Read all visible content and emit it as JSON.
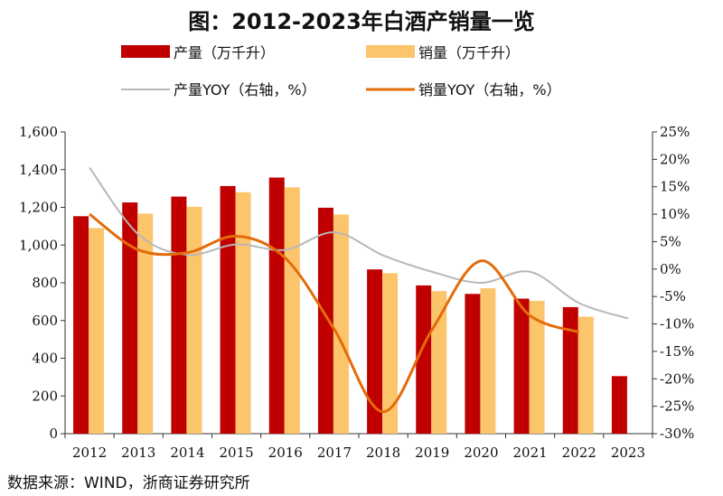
{
  "title": "图：2012-2023年白酒产销量一览",
  "source": "数据来源：WIND，浙商证券研究所",
  "colors": {
    "production": "#c00000",
    "sales": "#fcc46b",
    "production_yoy": "#b8b8b8",
    "sales_yoy": "#e36c0a"
  },
  "chart_data": {
    "type": "bar",
    "categories": [
      "2012",
      "2013",
      "2014",
      "2015",
      "2016",
      "2017",
      "2018",
      "2019",
      "2020",
      "2021",
      "2022",
      "2023"
    ],
    "series": [
      {
        "name": "产量（万千升）",
        "type": "bar",
        "axis": "left",
        "values": [
          1153,
          1226,
          1257,
          1313,
          1358,
          1198,
          871,
          786,
          741,
          716,
          671,
          305
        ]
      },
      {
        "name": "销量（万千升）",
        "type": "bar",
        "axis": "left",
        "values": [
          1090,
          1167,
          1203,
          1280,
          1306,
          1162,
          851,
          756,
          771,
          704,
          620,
          null
        ]
      },
      {
        "name": "产量YOY（右轴，%）",
        "type": "line",
        "axis": "right",
        "values": [
          18.5,
          6.3,
          2.6,
          4.5,
          3.5,
          6.7,
          2.5,
          -0.5,
          -2.5,
          -0.5,
          -6.2,
          -9.0
        ]
      },
      {
        "name": "销量YOY（右轴，%）",
        "type": "line",
        "axis": "right",
        "values": [
          10.0,
          3.5,
          3.0,
          6.0,
          2.0,
          -11.0,
          -26.0,
          -11.0,
          1.5,
          -8.5,
          -11.5,
          null
        ]
      }
    ],
    "left_axis": {
      "min": 0,
      "max": 1600,
      "ticks": [
        "0",
        "200",
        "400",
        "600",
        "800",
        "1,000",
        "1,200",
        "1,400",
        "1,600"
      ]
    },
    "right_axis": {
      "min": -30,
      "max": 25,
      "ticks": [
        "-30%",
        "-25%",
        "-20%",
        "-15%",
        "-10%",
        "-5%",
        "0%",
        "5%",
        "10%",
        "15%",
        "20%",
        "25%"
      ]
    },
    "legend_placement": "top"
  }
}
